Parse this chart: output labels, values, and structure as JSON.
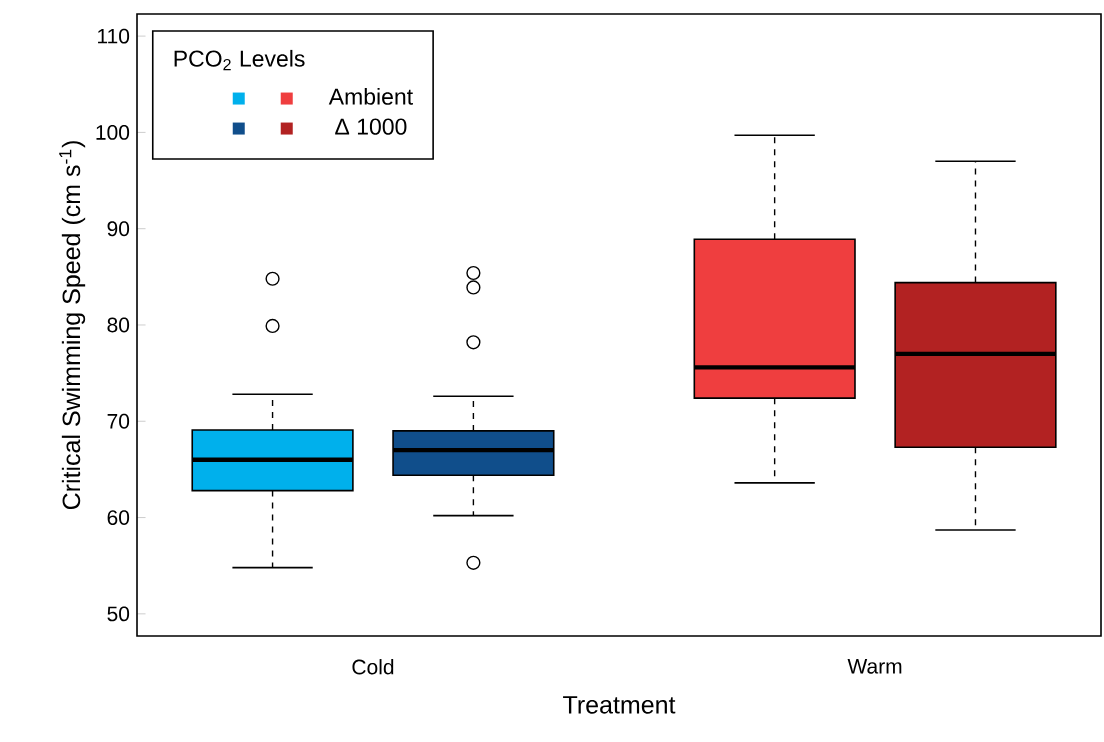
{
  "chart_data": {
    "type": "box",
    "xlabel": "Treatment",
    "ylabel": "Critical Swimming Speed (cm s$^{-1}$)",
    "legend_title": "PCO$_{2}$ Levels",
    "categories": [
      "Cold",
      "Warm"
    ],
    "ylim": [
      47.7,
      112.3
    ],
    "yticks": [
      50,
      60,
      70,
      80,
      90,
      100,
      110
    ],
    "grid": false,
    "legend": "top left",
    "series": [
      {
        "name": "Ambient",
        "colors": [
          "#00b0ec",
          "#ef3e3f"
        ],
        "boxes": [
          {
            "low": 54.8,
            "q1": 62.8,
            "median": 66.0,
            "q3": 69.1,
            "high": 72.8,
            "outliers": [
              84.8,
              79.9
            ]
          },
          {
            "low": 63.6,
            "q1": 72.4,
            "median": 75.6,
            "q3": 88.9,
            "high": 99.7
          }
        ]
      },
      {
        "name": "Δ 1000",
        "colors": [
          "#104e8b",
          "#b22222"
        ],
        "boxes": [
          {
            "low": 60.2,
            "q1": 64.4,
            "median": 67.0,
            "q3": 69.0,
            "high": 72.6,
            "outliers": [
              85.4,
              83.9,
              78.2,
              55.3
            ]
          },
          {
            "low": 58.7,
            "q1": 67.3,
            "median": 77.0,
            "q3": 84.4,
            "high": 97.0
          }
        ]
      }
    ]
  }
}
